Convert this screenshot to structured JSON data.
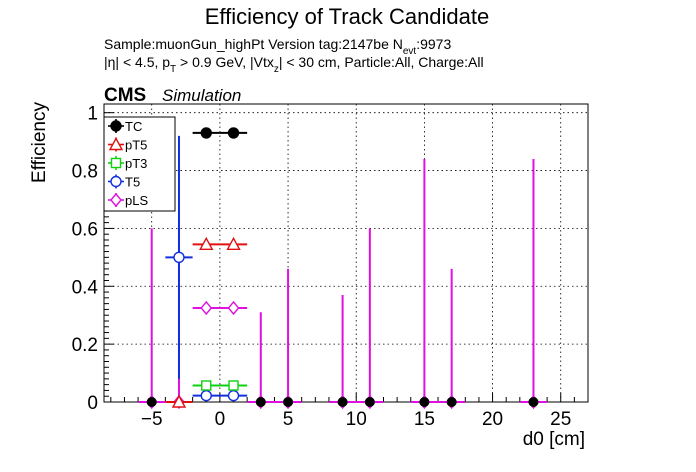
{
  "chart_data": {
    "type": "scatter",
    "title": "Efficiency of Track Candidate",
    "subtitle_line1": "Sample:muonGun_highPt   Version tag:2147be  N",
    "subtitle_line1_sub": "evt",
    "subtitle_line1_tail": ":9973",
    "subtitle_line2": "|η| < 4.5, p",
    "subtitle_line2_sub1": "T",
    "subtitle_line2_mid": " > 0.9 GeV, |Vtx",
    "subtitle_line2_sub2": "z",
    "subtitle_line2_tail": "| < 30 cm, Particle:All, Charge:All",
    "cms_label": "CMS",
    "simulation_label": "Simulation",
    "xlabel": "d0 [cm]",
    "ylabel": "Efficiency",
    "xlim": [
      -8.5,
      27
    ],
    "ylim": [
      0,
      1.03
    ],
    "xticks": [
      -5,
      0,
      5,
      10,
      15,
      20,
      25
    ],
    "xtick_labels": [
      "−5",
      "0",
      "5",
      "10",
      "15",
      "20",
      "25"
    ],
    "yticks": [
      0,
      0.2,
      0.4,
      0.6,
      0.8,
      1
    ],
    "ytick_labels": [
      "0",
      "0.2",
      "0.4",
      "0.6",
      "0.8",
      "1"
    ],
    "grid": true,
    "legend_position": "top-left",
    "series": [
      {
        "name": "TC",
        "color": "#000000",
        "marker": "filled-circle",
        "points": [
          {
            "x": -1,
            "xerr": 1,
            "y": 0.93,
            "ylo": 0.93,
            "yhi": 0.93
          },
          {
            "x": 1,
            "xerr": 1,
            "y": 0.93,
            "ylo": 0.93,
            "yhi": 0.93
          }
        ]
      },
      {
        "name": "pT5",
        "color": "#e01010",
        "marker": "open-triangle",
        "points": [
          {
            "x": -1,
            "xerr": 1,
            "y": 0.545,
            "ylo": 0.545,
            "yhi": 0.545
          },
          {
            "x": 1,
            "xerr": 1,
            "y": 0.545,
            "ylo": 0.545,
            "yhi": 0.545
          },
          {
            "x": -3,
            "xerr": 1,
            "y": 0,
            "ylo": 0,
            "yhi": 0
          }
        ]
      },
      {
        "name": "pT3",
        "color": "#10d010",
        "marker": "open-square",
        "points": [
          {
            "x": -1,
            "xerr": 1,
            "y": 0.057,
            "ylo": 0.057,
            "yhi": 0.057
          },
          {
            "x": 1,
            "xerr": 1,
            "y": 0.057,
            "ylo": 0.057,
            "yhi": 0.057
          }
        ]
      },
      {
        "name": "T5",
        "color": "#1030e0",
        "marker": "open-circle",
        "points": [
          {
            "x": -3,
            "xerr": 1,
            "y": 0.5,
            "ylo": 0.08,
            "yhi": 0.92
          },
          {
            "x": -1,
            "xerr": 1,
            "y": 0.022,
            "ylo": 0.022,
            "yhi": 0.022
          },
          {
            "x": 1,
            "xerr": 1,
            "y": 0.022,
            "ylo": 0.022,
            "yhi": 0.022
          }
        ]
      },
      {
        "name": "pLS",
        "color": "#e010e0",
        "marker": "open-diamond",
        "points": [
          {
            "x": -5,
            "xerr": 1,
            "y": 0,
            "ylo": 0,
            "yhi": 0.6
          },
          {
            "x": -3,
            "xerr": 1,
            "y": 0,
            "ylo": 0,
            "yhi": 0.6
          },
          {
            "x": -1,
            "xerr": 1,
            "y": 0.325,
            "ylo": 0.325,
            "yhi": 0.325
          },
          {
            "x": 1,
            "xerr": 1,
            "y": 0.325,
            "ylo": 0.325,
            "yhi": 0.325
          },
          {
            "x": 3,
            "xerr": 1,
            "y": 0,
            "ylo": 0,
            "yhi": 0.31
          },
          {
            "x": 5,
            "xerr": 1,
            "y": 0,
            "ylo": 0,
            "yhi": 0.46
          },
          {
            "x": 9,
            "xerr": 1,
            "y": 0,
            "ylo": 0,
            "yhi": 0.37
          },
          {
            "x": 11,
            "xerr": 1,
            "y": 0,
            "ylo": 0,
            "yhi": 0.6
          },
          {
            "x": 15,
            "xerr": 1,
            "y": 0,
            "ylo": 0,
            "yhi": 0.84
          },
          {
            "x": 17,
            "xerr": 1,
            "y": 0,
            "ylo": 0,
            "yhi": 0.46
          },
          {
            "x": 23,
            "xerr": 1,
            "y": 0,
            "ylo": 0,
            "yhi": 0.84
          }
        ]
      }
    ],
    "zero_markers_x": [
      -5,
      3,
      5,
      9,
      11,
      15,
      17,
      23
    ]
  }
}
